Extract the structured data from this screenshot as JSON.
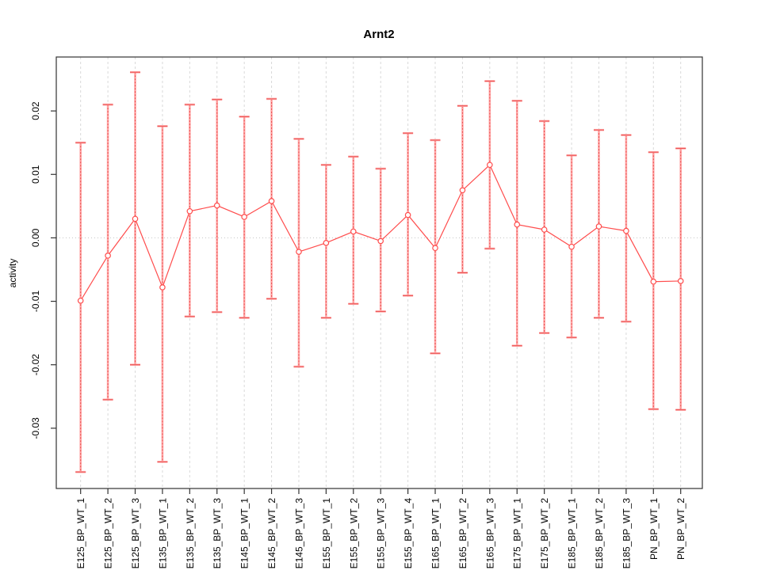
{
  "chart_data": {
    "type": "line",
    "title": "Arnt2",
    "xlabel": "",
    "ylabel": "activity",
    "legend": "none",
    "grid": "vertical dashed gridlines at each category; dotted horizontal line at zero",
    "marker": "open-circle",
    "ylim": [
      -0.0395,
      0.0285
    ],
    "yticks": [
      -0.03,
      -0.02,
      -0.01,
      0.0,
      0.01,
      0.02
    ],
    "ytick_labels": [
      "-0.03",
      "-0.02",
      "-0.01",
      "0.00",
      "0.01",
      "0.02"
    ],
    "categories": [
      "E125_BP_WT_1",
      "E125_BP_WT_2",
      "E125_BP_WT_3",
      "E135_BP_WT_1",
      "E135_BP_WT_2",
      "E135_BP_WT_3",
      "E145_BP_WT_1",
      "E145_BP_WT_2",
      "E145_BP_WT_3",
      "E155_BP_WT_1",
      "E155_BP_WT_2",
      "E155_BP_WT_3",
      "E155_BP_WT_4",
      "E165_BP_WT_1",
      "E165_BP_WT_2",
      "E165_BP_WT_3",
      "E175_BP_WT_1",
      "E175_BP_WT_2",
      "E185_BP_WT_1",
      "E185_BP_WT_2",
      "E185_BP_WT_3",
      "PN_BP_WT_1",
      "PN_BP_WT_2"
    ],
    "series": [
      {
        "name": "activity",
        "values": [
          -0.0099,
          -0.0028,
          0.003,
          -0.0078,
          0.0042,
          0.0051,
          0.0033,
          0.0058,
          -0.0022,
          -0.0008,
          0.001,
          -0.0005,
          0.0036,
          -0.0016,
          0.0075,
          0.0115,
          0.0021,
          0.0013,
          -0.0014,
          0.0018,
          0.0011,
          -0.0069,
          -0.0068
        ],
        "error_high": [
          0.015,
          0.021,
          0.0261,
          0.0176,
          0.021,
          0.0218,
          0.0191,
          0.0219,
          0.0156,
          0.0115,
          0.0128,
          0.0109,
          0.0165,
          0.0154,
          0.0208,
          0.0247,
          0.0216,
          0.0184,
          0.013,
          0.017,
          0.0162,
          0.0135,
          0.0141
        ],
        "error_low": [
          -0.0369,
          -0.0255,
          -0.02,
          -0.0353,
          -0.0124,
          -0.0117,
          -0.0126,
          -0.0096,
          -0.0203,
          -0.0126,
          -0.0104,
          -0.0116,
          -0.0091,
          -0.0182,
          -0.0055,
          -0.0017,
          -0.017,
          -0.015,
          -0.0157,
          -0.0126,
          -0.0132,
          -0.027,
          -0.0271
        ]
      }
    ],
    "colors": {
      "series_red": "#ff4d4d",
      "whisker_pink": "#ffa8a8",
      "whisker_dash_red": "#e84545",
      "grid_gray": "#d9d9d9",
      "zero_line_gray": "#c4c4c4",
      "frame": "#333333",
      "text": "#000000"
    }
  }
}
